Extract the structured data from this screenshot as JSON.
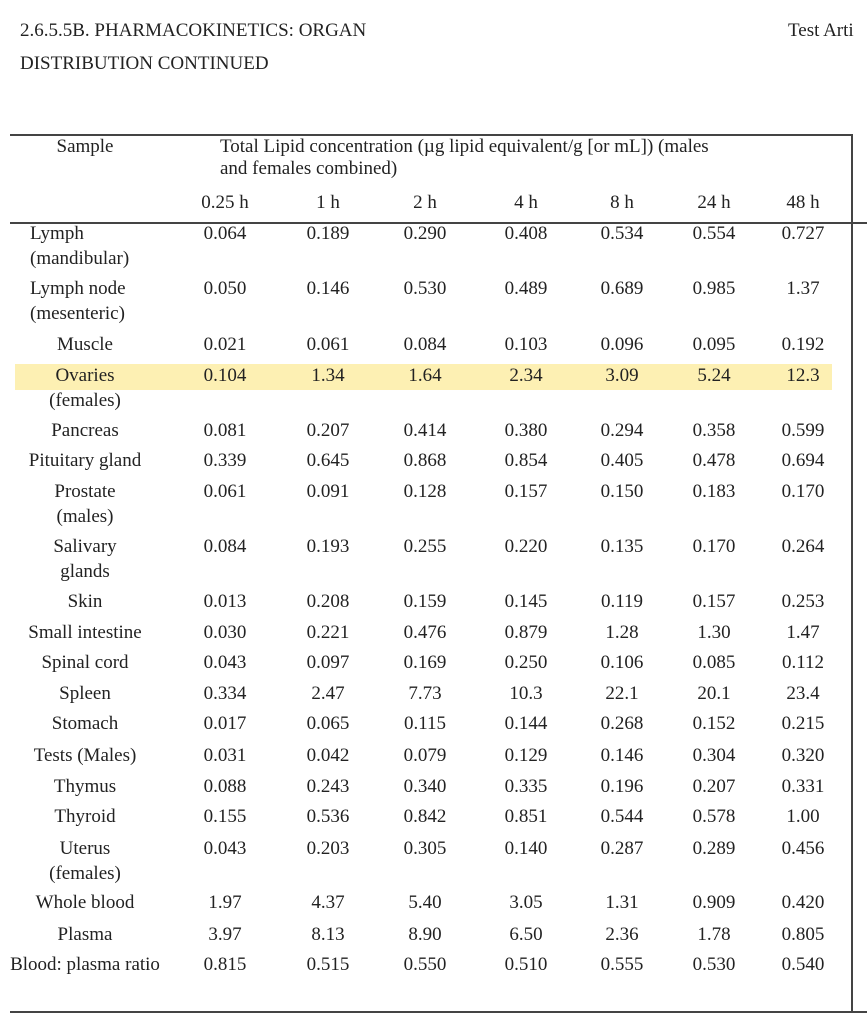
{
  "header": {
    "title_lines": [
      "2.6.5.5B. PHARMACOKINETICS: ORGAN",
      "DISTRIBUTION CONTINUED"
    ],
    "right": "Test Arti"
  },
  "table": {
    "sample_header": "Sample",
    "group_header_lines": [
      "Total Lipid concentration (µg lipid equivalent/g [or mL]) (males",
      "and females combined)"
    ],
    "times": [
      "0.25 h",
      "1 h",
      "2 h",
      "4 h",
      "8 h",
      "24 h",
      "48 h"
    ],
    "rows": [
      {
        "sample": [
          "Lymph",
          "(mandibular)"
        ],
        "values": [
          "0.064",
          "0.189",
          "0.290",
          "0.408",
          "0.534",
          "0.554",
          "0.727"
        ]
      },
      {
        "sample": [
          "Lymph node",
          "(mesenteric)"
        ],
        "values": [
          "0.050",
          "0.146",
          "0.530",
          "0.489",
          "0.689",
          "0.985",
          "1.37"
        ]
      },
      {
        "sample": [
          "Muscle"
        ],
        "values": [
          "0.021",
          "0.061",
          "0.084",
          "0.103",
          "0.096",
          "0.095",
          "0.192"
        ]
      },
      {
        "sample": [
          "Ovaries",
          "(females)"
        ],
        "values": [
          "0.104",
          "1.34",
          "1.64",
          "2.34",
          "3.09",
          "5.24",
          "12.3"
        ],
        "highlight": true
      },
      {
        "sample": [
          "Pancreas"
        ],
        "values": [
          "0.081",
          "0.207",
          "0.414",
          "0.380",
          "0.294",
          "0.358",
          "0.599"
        ]
      },
      {
        "sample": [
          "Pituitary gland"
        ],
        "values": [
          "0.339",
          "0.645",
          "0.868",
          "0.854",
          "0.405",
          "0.478",
          "0.694"
        ]
      },
      {
        "sample": [
          "Prostate",
          "(males)"
        ],
        "values": [
          "0.061",
          "0.091",
          "0.128",
          "0.157",
          "0.150",
          "0.183",
          "0.170"
        ]
      },
      {
        "sample": [
          "Salivary",
          "glands"
        ],
        "values": [
          "0.084",
          "0.193",
          "0.255",
          "0.220",
          "0.135",
          "0.170",
          "0.264"
        ]
      },
      {
        "sample": [
          "Skin"
        ],
        "values": [
          "0.013",
          "0.208",
          "0.159",
          "0.145",
          "0.119",
          "0.157",
          "0.253"
        ]
      },
      {
        "sample": [
          "Small intestine"
        ],
        "values": [
          "0.030",
          "0.221",
          "0.476",
          "0.879",
          "1.28",
          "1.30",
          "1.47"
        ]
      },
      {
        "sample": [
          "Spinal cord"
        ],
        "values": [
          "0.043",
          "0.097",
          "0.169",
          "0.250",
          "0.106",
          "0.085",
          "0.112"
        ]
      },
      {
        "sample": [
          "Spleen"
        ],
        "values": [
          "0.334",
          "2.47",
          "7.73",
          "10.3",
          "22.1",
          "20.1",
          "23.4"
        ]
      },
      {
        "sample": [
          "Stomach"
        ],
        "values": [
          "0.017",
          "0.065",
          "0.115",
          "0.144",
          "0.268",
          "0.152",
          "0.215"
        ]
      },
      {
        "sample": [
          "Tests (Males)"
        ],
        "values": [
          "0.031",
          "0.042",
          "0.079",
          "0.129",
          "0.146",
          "0.304",
          "0.320"
        ]
      },
      {
        "sample": [
          "Thymus"
        ],
        "values": [
          "0.088",
          "0.243",
          "0.340",
          "0.335",
          "0.196",
          "0.207",
          "0.331"
        ]
      },
      {
        "sample": [
          "Thyroid"
        ],
        "values": [
          "0.155",
          "0.536",
          "0.842",
          "0.851",
          "0.544",
          "0.578",
          "1.00"
        ]
      },
      {
        "sample": [
          "Uterus",
          "(females)"
        ],
        "values": [
          "0.043",
          "0.203",
          "0.305",
          "0.140",
          "0.287",
          "0.289",
          "0.456"
        ]
      },
      {
        "sample": [
          "Whole blood"
        ],
        "values": [
          "1.97",
          "4.37",
          "5.40",
          "3.05",
          "1.31",
          "0.909",
          "0.420"
        ]
      },
      {
        "sample": [
          "Plasma"
        ],
        "values": [
          "3.97",
          "8.13",
          "8.90",
          "6.50",
          "2.36",
          "1.78",
          "0.805"
        ]
      },
      {
        "sample": [
          "Blood: plasma ratio"
        ],
        "values": [
          "0.815",
          "0.515",
          "0.550",
          "0.510",
          "0.555",
          "0.530",
          "0.540"
        ]
      }
    ]
  }
}
